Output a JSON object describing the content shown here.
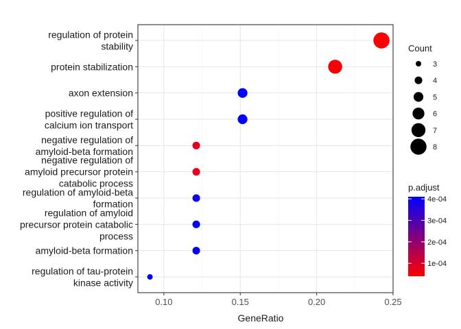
{
  "chart_data": {
    "type": "scatter",
    "xlabel": "GeneRatio",
    "xlim": [
      0.083,
      0.25
    ],
    "xticks": [
      "0.10",
      "0.15",
      "0.20",
      "0.25"
    ],
    "xtick_values": [
      0.1,
      0.15,
      0.2,
      0.25
    ],
    "grid": true,
    "legend_position": "right",
    "categories": [
      [
        "regulation of protein",
        "stability"
      ],
      [
        "protein stabilization"
      ],
      [
        "axon extension"
      ],
      [
        "positive regulation of",
        "calcium ion transport"
      ],
      [
        "negative regulation of",
        "amyloid-beta formation"
      ],
      [
        "negative regulation of",
        "amyloid precursor protein",
        "catabolic process"
      ],
      [
        "regulation of amyloid-beta",
        "formation"
      ],
      [
        "regulation of amyloid",
        "precursor protein catabolic",
        "process"
      ],
      [
        "amyloid-beta formation"
      ],
      [
        "regulation of tau-protein",
        "kinase activity"
      ]
    ],
    "points": [
      {
        "x": 0.2424,
        "count": 8,
        "p_adjust": 4e-05
      },
      {
        "x": 0.2121,
        "count": 7,
        "p_adjust": 5e-05
      },
      {
        "x": 0.1515,
        "count": 5,
        "p_adjust": 0.00041
      },
      {
        "x": 0.1515,
        "count": 5,
        "p_adjust": 0.00041
      },
      {
        "x": 0.1212,
        "count": 4,
        "p_adjust": 8e-05
      },
      {
        "x": 0.1212,
        "count": 4,
        "p_adjust": 8e-05
      },
      {
        "x": 0.1212,
        "count": 4,
        "p_adjust": 0.00039
      },
      {
        "x": 0.1212,
        "count": 4,
        "p_adjust": 0.0004
      },
      {
        "x": 0.1212,
        "count": 4,
        "p_adjust": 0.0004
      },
      {
        "x": 0.0909,
        "count": 3,
        "p_adjust": 0.00041
      }
    ],
    "size_legend": {
      "title": "Count",
      "values": [
        3,
        4,
        5,
        6,
        7,
        8
      ],
      "labels": [
        "3",
        "4",
        "5",
        "6",
        "7",
        "8"
      ]
    },
    "color_legend": {
      "title": "p.adjust",
      "labels": [
        "4e-04",
        "3e-04",
        "2e-04",
        "1e-04"
      ],
      "values": [
        0.0004,
        0.0003,
        0.0002,
        0.0001
      ],
      "range": [
        4e-05,
        0.00041
      ],
      "low_color": "#ff0000",
      "high_color": "#0000ff"
    }
  }
}
